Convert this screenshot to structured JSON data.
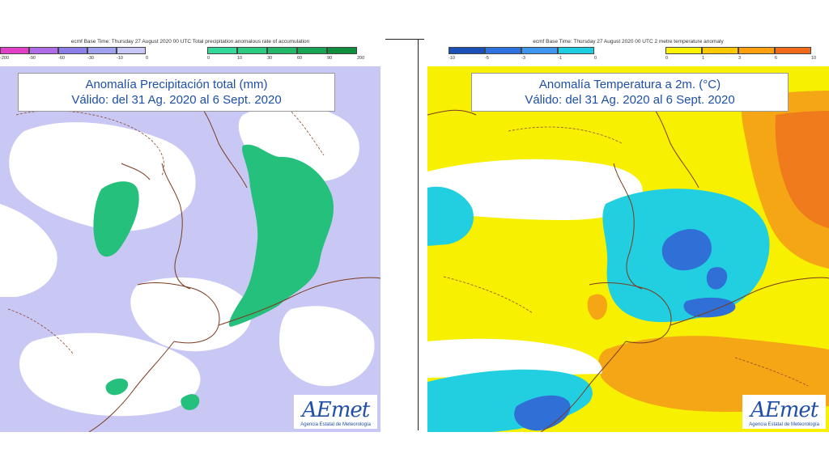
{
  "left_panel": {
    "header": "ecmf  Base Time: Thursday 27 August 2020 00 UTC Total precipitation anomalous rate of accumulation",
    "legend_negative": {
      "ticks": [
        "-200",
        "-90",
        "-60",
        "-30",
        "-10",
        "0"
      ],
      "colors": [
        "#e23fc7",
        "#b06be6",
        "#8c7ee8",
        "#9fa0ee",
        "#c7c6f5"
      ]
    },
    "legend_positive": {
      "ticks": [
        "0",
        "10",
        "30",
        "60",
        "90",
        "200"
      ],
      "colors": [
        "#34d99a",
        "#2bcb7f",
        "#22b868",
        "#17a453",
        "#0e8d3d"
      ]
    },
    "title_line1": "Anomalía Precipitación total (mm)",
    "title_line2": "Válido: del 31 Ag. 2020 al 6 Sept. 2020",
    "map_colors": {
      "base": "#c9c8f4",
      "white": "#ffffff",
      "green": "#26c07d",
      "coast": "#7a3b1f",
      "contour": "#8a4a2a"
    }
  },
  "right_panel": {
    "header": "ecmf  Base Time: Thursday 27 August 2020 00 UTC 2 metre temperature anomaly",
    "legend_negative": {
      "ticks": [
        "-10",
        "-5",
        "-3",
        "-1",
        "0"
      ],
      "colors": [
        "#1b4fb8",
        "#2e72e0",
        "#3f96ee",
        "#1fcde0"
      ]
    },
    "legend_positive": {
      "ticks": [
        "0",
        "1",
        "3",
        "6",
        "10"
      ],
      "colors": [
        "#fff200",
        "#ffc800",
        "#ff9f10",
        "#f06a1a"
      ]
    },
    "title_line1": "Anomalía Temperatura a 2m. (°C)",
    "title_line2": "Válido: del 31 Ag. 2020 al 6 Sept. 2020",
    "map_colors": {
      "yellow": "#f7f000",
      "white": "#ffffff",
      "cyan": "#22cfe0",
      "blue": "#2f6fd6",
      "orange": "#f5a614",
      "darkorange": "#ef7b1c",
      "coast": "#7a3b1f"
    }
  },
  "branding": {
    "logo_text": "AEmet",
    "subtitle": "Agencia Estatal de Meteorología"
  }
}
